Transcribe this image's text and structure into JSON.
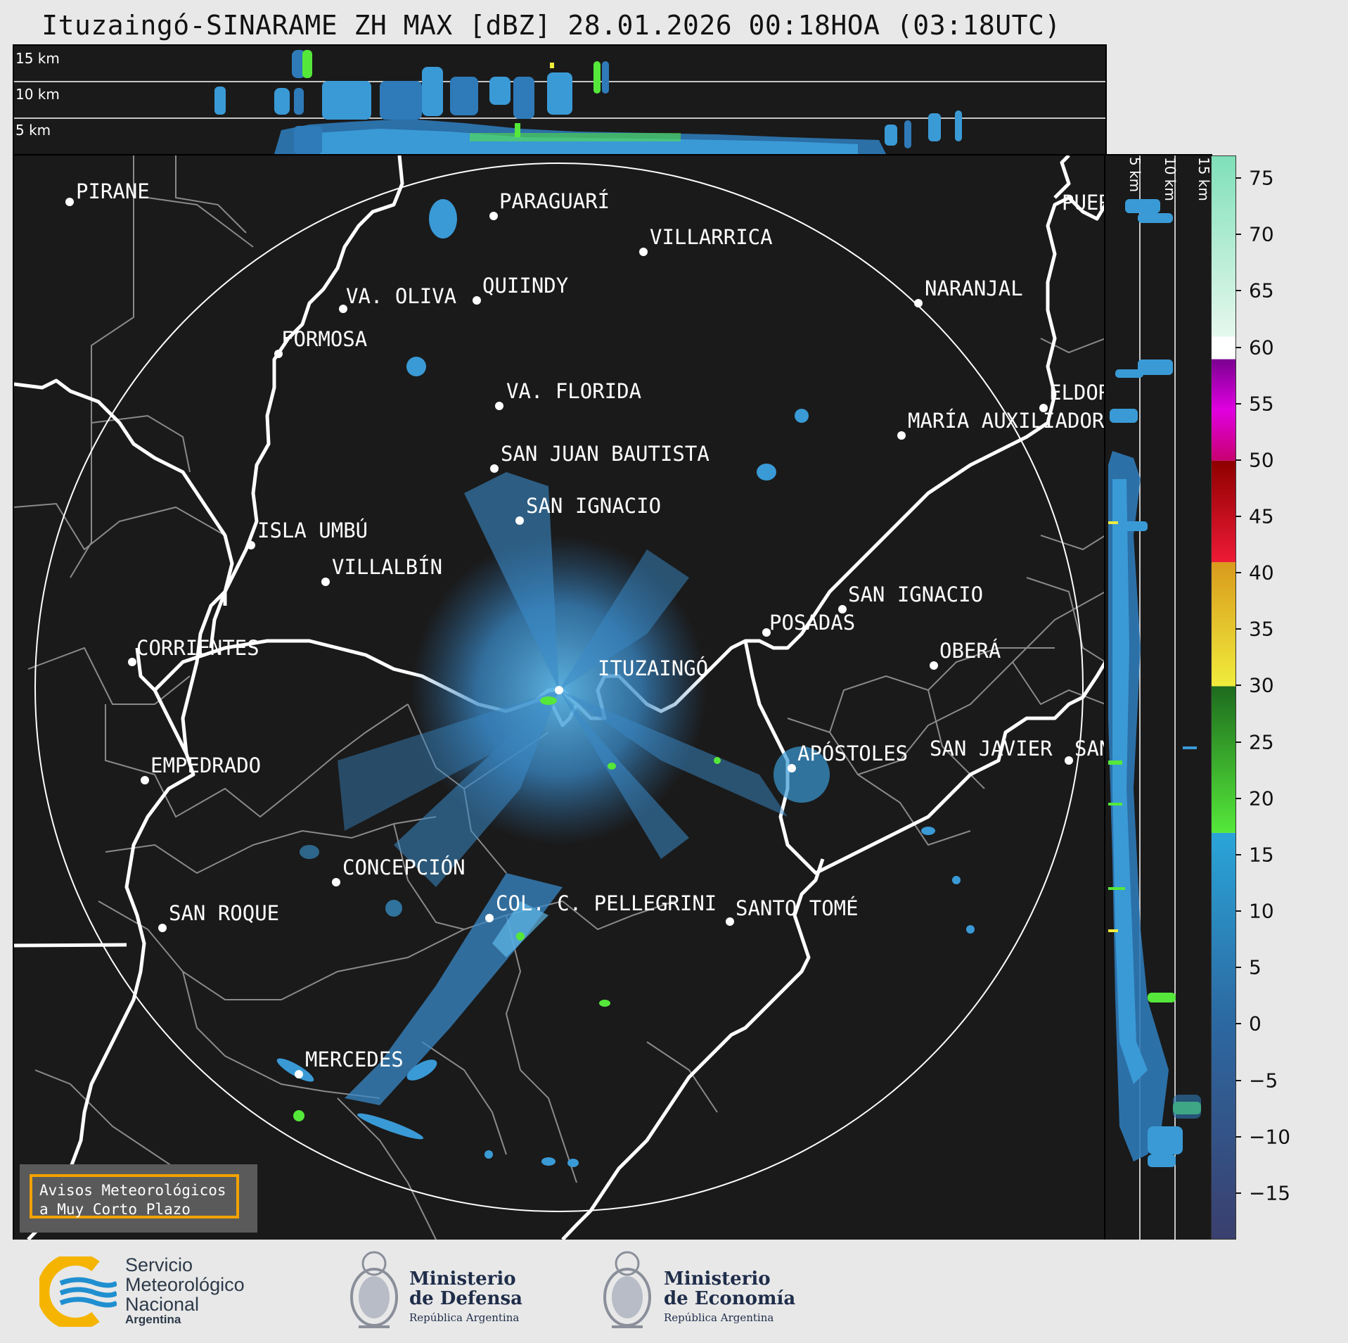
{
  "title": "Ituzaingó-SINARAME ZH MAX [dBZ] 28.01.2026 00:18HOA (03:18UTC)",
  "top_panel": {
    "height_labels": [
      "15 km",
      "10 km",
      "5 km"
    ]
  },
  "side_panel": {
    "height_labels": [
      "5 km",
      "10 km",
      "15 km"
    ]
  },
  "colorbar": {
    "unit": "dBZ",
    "ticks": [
      "75",
      "70",
      "65",
      "60",
      "55",
      "50",
      "45",
      "40",
      "35",
      "30",
      "25",
      "20",
      "15",
      "10",
      "5",
      "0",
      "−5",
      "−10",
      "−15"
    ],
    "tick_values": [
      75,
      70,
      65,
      60,
      55,
      50,
      45,
      40,
      35,
      30,
      25,
      20,
      15,
      10,
      5,
      0,
      -5,
      -10,
      -15
    ],
    "range": [
      -19,
      77
    ],
    "bands": [
      {
        "from": -19,
        "to": 17,
        "colors": [
          "#3a3f6e",
          "#2c6aa3",
          "#2aa5d8"
        ]
      },
      {
        "from": 17,
        "to": 30,
        "colors": [
          "#55e83a",
          "#1e6b1e"
        ]
      },
      {
        "from": 30,
        "to": 41,
        "colors": [
          "#f0ec3c",
          "#d99a1c"
        ]
      },
      {
        "from": 41,
        "to": 50,
        "colors": [
          "#ee1a36",
          "#8e0000"
        ]
      },
      {
        "from": 50,
        "to": 59,
        "colors": [
          "#c80070",
          "#e000e0",
          "#7a0090"
        ]
      },
      {
        "from": 59,
        "to": 61,
        "colors": [
          "#ffffff",
          "#ffffff"
        ]
      },
      {
        "from": 61,
        "to": 77,
        "colors": [
          "#c8f0dc",
          "#7fe0b8"
        ]
      }
    ]
  },
  "cities": [
    {
      "name": "PIRANE"
    },
    {
      "name": "PARAGUARÍ"
    },
    {
      "name": "VILLARRICA"
    },
    {
      "name": "QUIINDY"
    },
    {
      "name": "VA. OLIVA"
    },
    {
      "name": "NARANJAL"
    },
    {
      "name": "FORMOSA"
    },
    {
      "name": "VA. FLORIDA"
    },
    {
      "name": "ELDOR"
    },
    {
      "name": "MARÍA AUXILIADOR"
    },
    {
      "name": "SAN JUAN BAUTISTA"
    },
    {
      "name": "SAN IGNACIO"
    },
    {
      "name": "ISLA UMBÚ"
    },
    {
      "name": "VILLALBÍN"
    },
    {
      "name": "SAN IGNACIO"
    },
    {
      "name": "POSADAS"
    },
    {
      "name": "CORRIENTES"
    },
    {
      "name": "ITUZAINGÓ"
    },
    {
      "name": "OBERÁ"
    },
    {
      "name": "APÓSTOLES"
    },
    {
      "name": "SAN JAVIER"
    },
    {
      "name": "SAN"
    },
    {
      "name": "EMPEDRADO"
    },
    {
      "name": "CONCEPCIÓN"
    },
    {
      "name": "COL. C. PELLEGRINI"
    },
    {
      "name": "SANTO TOMÉ"
    },
    {
      "name": "SAN ROQUE"
    },
    {
      "name": "MERCEDES"
    },
    {
      "name": "PUER"
    }
  ],
  "aviso": {
    "line1": "Avisos Meteorológicos",
    "line2": "a Muy Corto Plazo"
  },
  "footer": {
    "smn": {
      "line1": "Servicio",
      "line2": "Meteorológico",
      "line3": "Nacional",
      "line4": "Argentina"
    },
    "defensa": {
      "line1": "Ministerio",
      "line2": "de Defensa",
      "sub": "República Argentina"
    },
    "economia": {
      "line1": "Ministerio",
      "line2": "de Economía",
      "sub": "República Argentina"
    }
  },
  "colors": {
    "background": "#1a1a1a",
    "echo_light": "#3a9ad6",
    "echo_dark": "#2f6fa8",
    "echo_green": "#55e83a",
    "border_white": "#ffffff",
    "province_gray": "#8a8a8a",
    "aviso_border": "#f2a200"
  }
}
